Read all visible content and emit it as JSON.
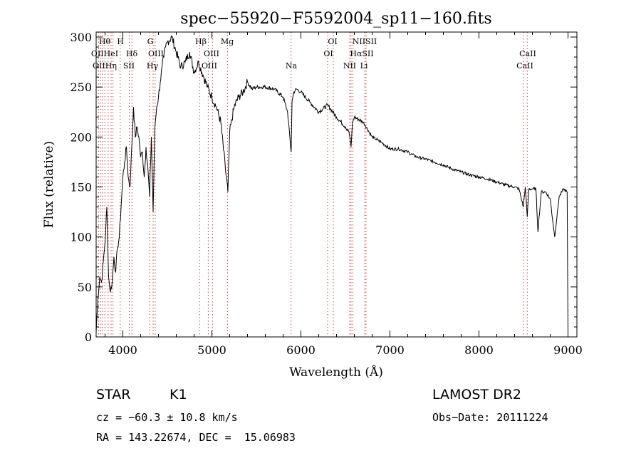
{
  "chart_data": {
    "type": "line",
    "title": "spec−55920−F5592004_sp11−160.fits",
    "xlabel": "Wavelength (Å)",
    "ylabel": "Flux (relative)",
    "xlim": [
      3700,
      9100
    ],
    "ylim": [
      0,
      305
    ],
    "xticks": [
      4000,
      5000,
      6000,
      7000,
      8000,
      9000
    ],
    "yticks": [
      0,
      50,
      100,
      150,
      200,
      250,
      300
    ],
    "series": [
      {
        "x": [
          3700,
          3720,
          3740,
          3760,
          3780,
          3800,
          3820,
          3840,
          3860,
          3880,
          3900,
          3920,
          3940,
          3960,
          3980,
          4000,
          4020,
          4040,
          4060,
          4080,
          4100,
          4120,
          4140,
          4160,
          4180,
          4200,
          4220,
          4240,
          4260,
          4280,
          4300,
          4320,
          4340,
          4360,
          4380,
          4400,
          4420,
          4440,
          4460,
          4480,
          4500,
          4550,
          4600,
          4650,
          4700,
          4750,
          4800,
          4850,
          4900,
          4950,
          5000,
          5050,
          5100,
          5150,
          5180,
          5200,
          5250,
          5300,
          5350,
          5400,
          5450,
          5500,
          5600,
          5700,
          5800,
          5850,
          5880,
          5890,
          5900,
          5920,
          5950,
          6000,
          6100,
          6200,
          6300,
          6400,
          6500,
          6540,
          6563,
          6580,
          6600,
          6700,
          6800,
          6900,
          7000,
          7100,
          7200,
          7300,
          7400,
          7500,
          7600,
          7700,
          7800,
          7900,
          8000,
          8100,
          8200,
          8300,
          8400,
          8450,
          8498,
          8520,
          8542,
          8560,
          8600,
          8640,
          8662,
          8700,
          8750,
          8800,
          8850,
          8900,
          8950,
          8990,
          9000
        ],
        "values": [
          5,
          40,
          60,
          55,
          75,
          95,
          130,
          60,
          45,
          55,
          80,
          65,
          90,
          100,
          130,
          160,
          175,
          190,
          160,
          150,
          190,
          230,
          200,
          210,
          200,
          180,
          185,
          160,
          190,
          170,
          140,
          200,
          125,
          210,
          230,
          240,
          255,
          270,
          280,
          290,
          295,
          300,
          285,
          270,
          275,
          285,
          265,
          275,
          262,
          250,
          240,
          230,
          215,
          170,
          145,
          205,
          230,
          240,
          245,
          255,
          248,
          250,
          250,
          248,
          240,
          225,
          195,
          185,
          235,
          245,
          248,
          245,
          235,
          225,
          232,
          220,
          210,
          205,
          190,
          215,
          220,
          215,
          200,
          195,
          188,
          188,
          185,
          180,
          178,
          175,
          172,
          168,
          165,
          162,
          160,
          158,
          155,
          152,
          150,
          148,
          130,
          150,
          120,
          148,
          148,
          148,
          105,
          145,
          145,
          138,
          100,
          140,
          148,
          145,
          5
        ]
      }
    ],
    "lines_top": [
      "Hθ",
      "H",
      "G",
      "Hβ",
      "Mg",
      "OI",
      "NIISII"
    ],
    "lines_mid": [
      "OIIHeI",
      "Hδ",
      "OIII",
      "OIII",
      "OI",
      "HαSII",
      "CaII"
    ],
    "lines_bot": [
      "OIIHη",
      "SII",
      "Hγ",
      "OIII",
      "Na",
      "NII",
      "Li",
      "CaII"
    ]
  },
  "info": {
    "object": "STAR",
    "subclass": "K1",
    "cz": "cz = −60.3 ± 10.8 km/s",
    "radec": "RA = 143.22674, DEC =  15.06983",
    "survey": "LAMOST DR2",
    "obsdate": "Obs−Date: 20111224"
  }
}
